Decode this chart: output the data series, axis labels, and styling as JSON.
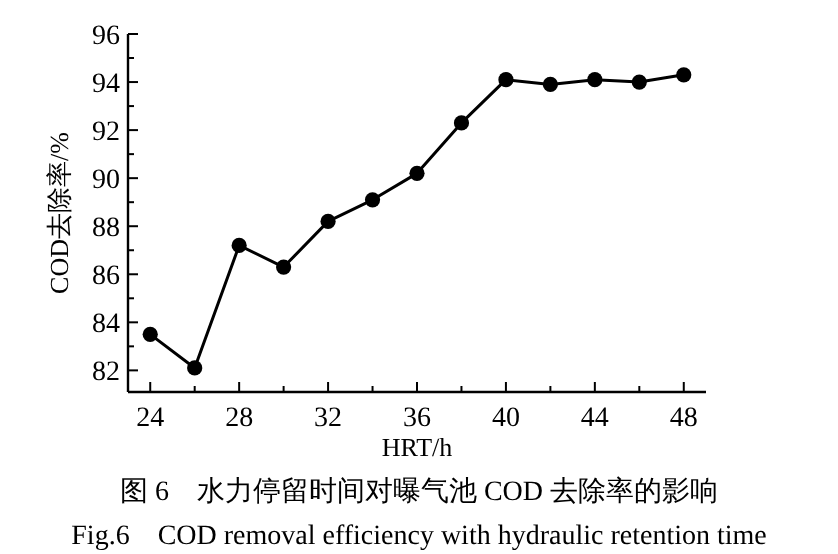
{
  "chart_data": {
    "type": "line",
    "xlabel": "HRT/h",
    "ylabel": "COD去除率/%",
    "x": [
      24,
      26,
      28,
      30,
      32,
      34,
      36,
      38,
      40,
      42,
      44,
      46,
      48
    ],
    "series": [
      {
        "color": "#000000",
        "values": [
          83.5,
          82.1,
          87.2,
          86.3,
          88.2,
          89.1,
          90.2,
          92.3,
          94.1,
          93.9,
          94.1,
          94.0,
          94.3
        ]
      }
    ],
    "xlim": [
      23,
      49
    ],
    "ylim": [
      81.1,
      96
    ],
    "xticks": [
      24,
      {
        "value": 26,
        "label": null
      },
      28,
      {
        "value": 30,
        "label": null
      },
      32,
      {
        "value": 34,
        "label": null
      },
      36,
      {
        "value": 38,
        "label": null
      },
      40,
      {
        "value": 42,
        "label": null
      },
      44,
      {
        "value": 46,
        "label": null
      },
      48
    ],
    "yticks": [
      82,
      {
        "value": 83,
        "label": null
      },
      84,
      {
        "value": 85,
        "label": null
      },
      86,
      {
        "value": 87,
        "label": null
      },
      88,
      {
        "value": 89,
        "label": null
      },
      90,
      {
        "value": 91,
        "label": null
      },
      92,
      {
        "value": 93,
        "label": null
      },
      94,
      {
        "value": 95,
        "label": null
      },
      96
    ],
    "marker": "circle",
    "line_style": "solid",
    "grid": false,
    "annotations": [
      "图 6　水力停留时间对曝气池 COD 去除率的影响",
      "Fig.6　COD removal efficiency with hydraulic retention time"
    ]
  }
}
